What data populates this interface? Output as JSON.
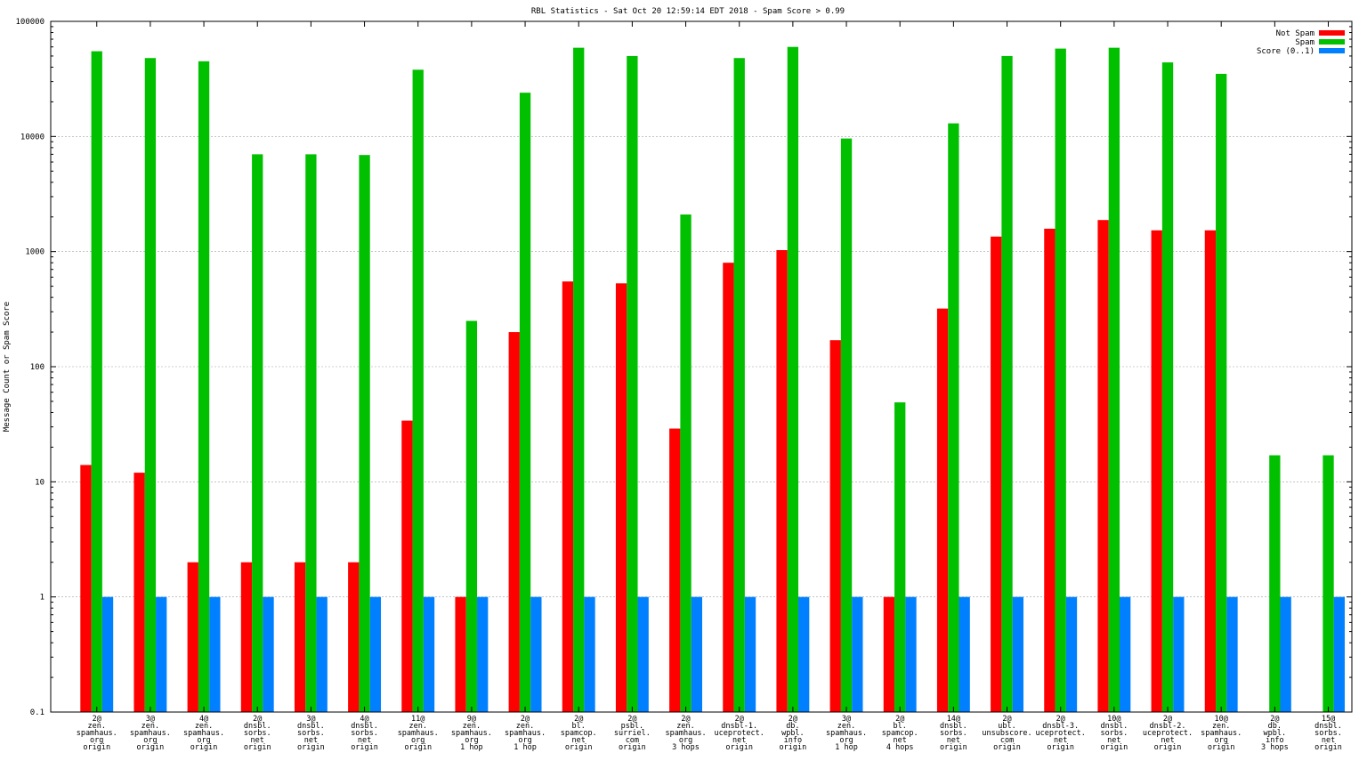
{
  "chart_data": {
    "type": "bar",
    "title": "RBL Statistics - Sat Oct 20 12:59:14 EDT 2018 - Spam Score > 0.99",
    "xlabel": "",
    "ylabel": "Message Count or Spam Score",
    "yscale": "log",
    "ylim": [
      0.1,
      100000
    ],
    "yticks": [
      "0.1",
      "1",
      "10",
      "100",
      "1000",
      "10000",
      "100000"
    ],
    "grid": true,
    "legend_position": "top-right",
    "categories": [
      [
        "2@",
        "zen.",
        "spamhaus.",
        "org",
        "origin"
      ],
      [
        "3@",
        "zen.",
        "spamhaus.",
        "org",
        "origin"
      ],
      [
        "4@",
        "zen.",
        "spamhaus.",
        "org",
        "origin"
      ],
      [
        "2@",
        "dnsbl.",
        "sorbs.",
        "net",
        "origin"
      ],
      [
        "3@",
        "dnsbl.",
        "sorbs.",
        "net",
        "origin"
      ],
      [
        "4@",
        "dnsbl.",
        "sorbs.",
        "net",
        "origin"
      ],
      [
        "11@",
        "zen.",
        "spamhaus.",
        "org",
        "origin"
      ],
      [
        "9@",
        "zen.",
        "spamhaus.",
        "org",
        "1 hop"
      ],
      [
        "2@",
        "zen.",
        "spamhaus.",
        "org",
        "1 hop"
      ],
      [
        "2@",
        "bl.",
        "spamcop.",
        "net",
        "origin"
      ],
      [
        "2@",
        "psbl.",
        "surriel.",
        "com",
        "origin"
      ],
      [
        "2@",
        "zen.",
        "spamhaus.",
        "org",
        "3 hops"
      ],
      [
        "2@",
        "dnsbl-1.",
        "uceprotect.",
        "net",
        "origin"
      ],
      [
        "2@",
        "db.",
        "wpbl.",
        "info",
        "origin"
      ],
      [
        "3@",
        "zen.",
        "spamhaus.",
        "org",
        "1 hop"
      ],
      [
        "2@",
        "bl.",
        "spamcop.",
        "net",
        "4 hops"
      ],
      [
        "14@",
        "dnsbl.",
        "sorbs.",
        "net",
        "origin"
      ],
      [
        "2@",
        "ubl.",
        "unsubscore.",
        "com",
        "origin"
      ],
      [
        "2@",
        "dnsbl-3.",
        "uceprotect.",
        "net",
        "origin"
      ],
      [
        "10@",
        "dnsbl.",
        "sorbs.",
        "net",
        "origin"
      ],
      [
        "2@",
        "dnsbl-2.",
        "uceprotect.",
        "net",
        "origin"
      ],
      [
        "10@",
        "zen.",
        "spamhaus.",
        "org",
        "origin"
      ],
      [
        "2@",
        "db.",
        "wpbl.",
        "info",
        "3 hops"
      ],
      [
        "15@",
        "dnsbl.",
        "sorbs.",
        "net",
        "origin"
      ]
    ],
    "series": [
      {
        "name": "Not Spam",
        "color": "#ff0000",
        "values": [
          14,
          12,
          2,
          2,
          2,
          2,
          34,
          1,
          200,
          550,
          530,
          29,
          800,
          1030,
          170,
          1,
          320,
          1350,
          1580,
          1880,
          1530,
          1530,
          null,
          null
        ]
      },
      {
        "name": "Spam",
        "color": "#00c000",
        "values": [
          55000,
          48000,
          45000,
          7000,
          7000,
          6900,
          38000,
          250,
          24000,
          59000,
          50000,
          2100,
          48000,
          60000,
          9600,
          49,
          13000,
          50000,
          58000,
          59000,
          44000,
          35000,
          17,
          17
        ]
      },
      {
        "name": "Score (0..1)",
        "color": "#0080ff",
        "values": [
          1,
          1,
          1,
          1,
          1,
          1,
          1,
          1,
          1,
          1,
          1,
          1,
          1,
          1,
          1,
          1,
          1,
          1,
          1,
          1,
          1,
          1,
          1,
          1
        ]
      }
    ]
  }
}
